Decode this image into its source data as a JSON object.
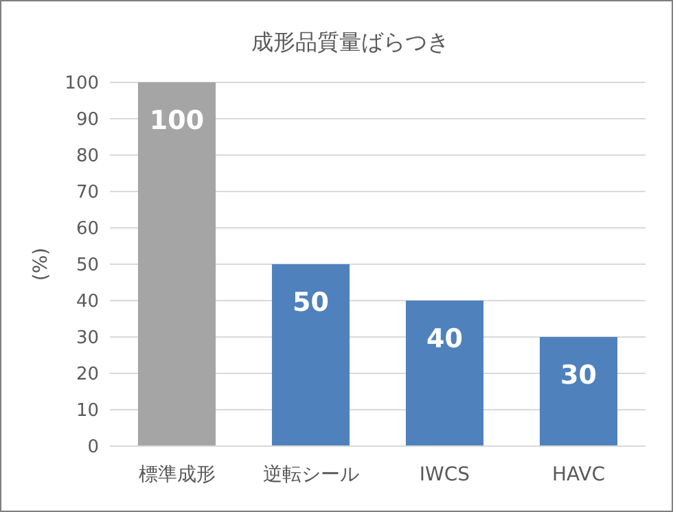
{
  "chart_data": {
    "type": "bar",
    "title": "成形品質量ばらつき",
    "ylabel": "(%)",
    "categories": [
      "標準成形",
      "逆転シール",
      "IWCS",
      "HAVC"
    ],
    "values": [
      100,
      50,
      40,
      30
    ],
    "colors": [
      "#a5a5a5",
      "#4f81bd",
      "#4f81bd",
      "#4f81bd"
    ],
    "ylim": [
      0,
      100
    ],
    "yticks": [
      0,
      10,
      20,
      30,
      40,
      50,
      60,
      70,
      80,
      90,
      100
    ],
    "grid": "y",
    "data_labels": true
  }
}
